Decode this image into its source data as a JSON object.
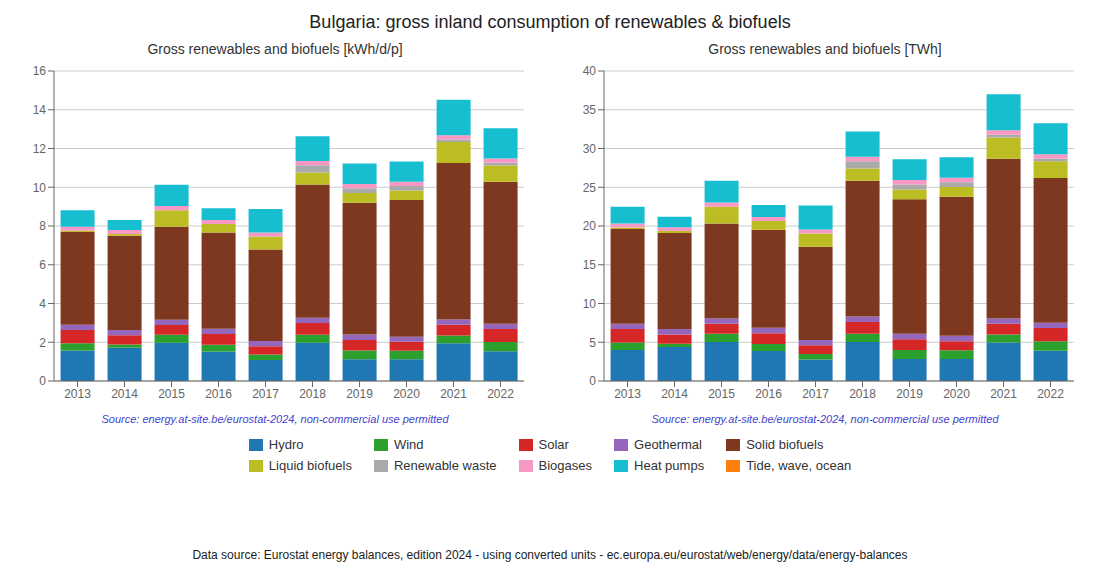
{
  "title": "Bulgaria: gross inland consumption of renewables & biofuels",
  "annotations": [
    "Data source: Eurostat energy balances, edition 2024 - using converted units - ec.europa.eu/eurostat/web/energy/data/energy-balances"
  ],
  "legend": "bottom",
  "chart_data": [
    {
      "type": "bar",
      "stacked": true,
      "grid": true,
      "title": "Gross renewables and biofuels [kWh/d/p]",
      "annotations": [
        "Source: energy.at-site.be/eurostat-2024, non-commercial use permitted"
      ],
      "categories": [
        "2013",
        "2014",
        "2015",
        "2016",
        "2017",
        "2018",
        "2019",
        "2020",
        "2021",
        "2022"
      ],
      "series": [
        {
          "name": "Hydro",
          "color": "#1f77b4",
          "values": [
            1.57,
            1.72,
            1.97,
            1.52,
            1.08,
            1.97,
            1.12,
            1.12,
            1.95,
            1.53
          ]
        },
        {
          "name": "Wind",
          "color": "#2ca02c",
          "values": [
            0.38,
            0.17,
            0.42,
            0.35,
            0.29,
            0.42,
            0.45,
            0.44,
            0.4,
            0.48
          ]
        },
        {
          "name": "Solar",
          "color": "#d62728",
          "values": [
            0.68,
            0.47,
            0.5,
            0.55,
            0.43,
            0.6,
            0.55,
            0.46,
            0.55,
            0.67
          ]
        },
        {
          "name": "Geothermal",
          "color": "#9467bd",
          "values": [
            0.27,
            0.27,
            0.27,
            0.28,
            0.27,
            0.28,
            0.28,
            0.27,
            0.27,
            0.27
          ]
        },
        {
          "name": "Solid biofuels",
          "color": "#7f3820",
          "values": [
            4.79,
            4.87,
            4.8,
            4.97,
            4.72,
            6.87,
            6.8,
            7.05,
            8.08,
            7.33
          ]
        },
        {
          "name": "Liquid biofuels",
          "color": "#bcbd22",
          "values": [
            0.07,
            0.09,
            0.85,
            0.43,
            0.67,
            0.62,
            0.5,
            0.49,
            1.08,
            0.84
          ]
        },
        {
          "name": "Renewable waste",
          "color": "#aaaaaa",
          "values": [
            0.0,
            0.0,
            0.0,
            0.0,
            0.0,
            0.37,
            0.25,
            0.24,
            0.14,
            0.14
          ]
        },
        {
          "name": "Biogases",
          "color": "#f799c4",
          "values": [
            0.2,
            0.2,
            0.22,
            0.21,
            0.2,
            0.22,
            0.22,
            0.22,
            0.22,
            0.22
          ]
        },
        {
          "name": "Heat pumps",
          "color": "#17becf",
          "values": [
            0.85,
            0.52,
            1.1,
            0.6,
            1.22,
            1.28,
            1.05,
            1.04,
            1.82,
            1.57
          ]
        },
        {
          "name": "Tide, wave, ocean",
          "color": "#ff7f0e",
          "values": [
            0.0,
            0.0,
            0.0,
            0.0,
            0.0,
            0.0,
            0.0,
            0.0,
            0.0,
            0.0
          ]
        }
      ],
      "ylim": [
        0,
        16
      ],
      "yticks": [
        0,
        2,
        4,
        6,
        8,
        10,
        12,
        14,
        16
      ]
    },
    {
      "type": "bar",
      "stacked": true,
      "grid": true,
      "title": "Gross renewables and biofuels [TWh]",
      "annotations": [
        "Source: energy.at-site.be/eurostat-2024, non-commercial use permitted"
      ],
      "categories": [
        "2013",
        "2014",
        "2015",
        "2016",
        "2017",
        "2018",
        "2019",
        "2020",
        "2021",
        "2022"
      ],
      "series": [
        {
          "name": "Hydro",
          "color": "#1f77b4",
          "values": [
            4.01,
            4.38,
            5.03,
            3.87,
            2.76,
            5.02,
            2.85,
            2.85,
            4.97,
            3.9
          ]
        },
        {
          "name": "Wind",
          "color": "#2ca02c",
          "values": [
            0.97,
            0.43,
            1.07,
            0.89,
            0.74,
            1.07,
            1.15,
            1.12,
            1.02,
            1.22
          ]
        },
        {
          "name": "Solar",
          "color": "#d62728",
          "values": [
            1.73,
            1.2,
            1.28,
            1.4,
            1.1,
            1.53,
            1.4,
            1.17,
            1.4,
            1.71
          ]
        },
        {
          "name": "Geothermal",
          "color": "#9467bd",
          "values": [
            0.69,
            0.69,
            0.69,
            0.71,
            0.69,
            0.71,
            0.71,
            0.69,
            0.69,
            0.69
          ]
        },
        {
          "name": "Solid biofuels",
          "color": "#7f3820",
          "values": [
            12.22,
            12.41,
            12.24,
            12.66,
            12.03,
            17.52,
            17.33,
            17.96,
            20.6,
            18.68
          ]
        },
        {
          "name": "Liquid biofuels",
          "color": "#bcbd22",
          "values": [
            0.18,
            0.23,
            2.17,
            1.1,
            1.71,
            1.58,
            1.28,
            1.25,
            2.75,
            2.14
          ]
        },
        {
          "name": "Renewable waste",
          "color": "#aaaaaa",
          "values": [
            0.0,
            0.0,
            0.0,
            0.0,
            0.0,
            0.94,
            0.64,
            0.61,
            0.36,
            0.36
          ]
        },
        {
          "name": "Biogases",
          "color": "#f799c4",
          "values": [
            0.51,
            0.51,
            0.56,
            0.54,
            0.51,
            0.56,
            0.56,
            0.56,
            0.56,
            0.56
          ]
        },
        {
          "name": "Heat pumps",
          "color": "#17becf",
          "values": [
            2.17,
            1.33,
            2.8,
            1.53,
            3.11,
            3.26,
            2.68,
            2.65,
            4.64,
            4.0
          ]
        },
        {
          "name": "Tide, wave, ocean",
          "color": "#ff7f0e",
          "values": [
            0.0,
            0.0,
            0.0,
            0.0,
            0.0,
            0.0,
            0.0,
            0.0,
            0.0,
            0.0
          ]
        }
      ],
      "ylim": [
        0,
        40
      ],
      "yticks": [
        0,
        5,
        10,
        15,
        20,
        25,
        30,
        35,
        40
      ]
    }
  ]
}
